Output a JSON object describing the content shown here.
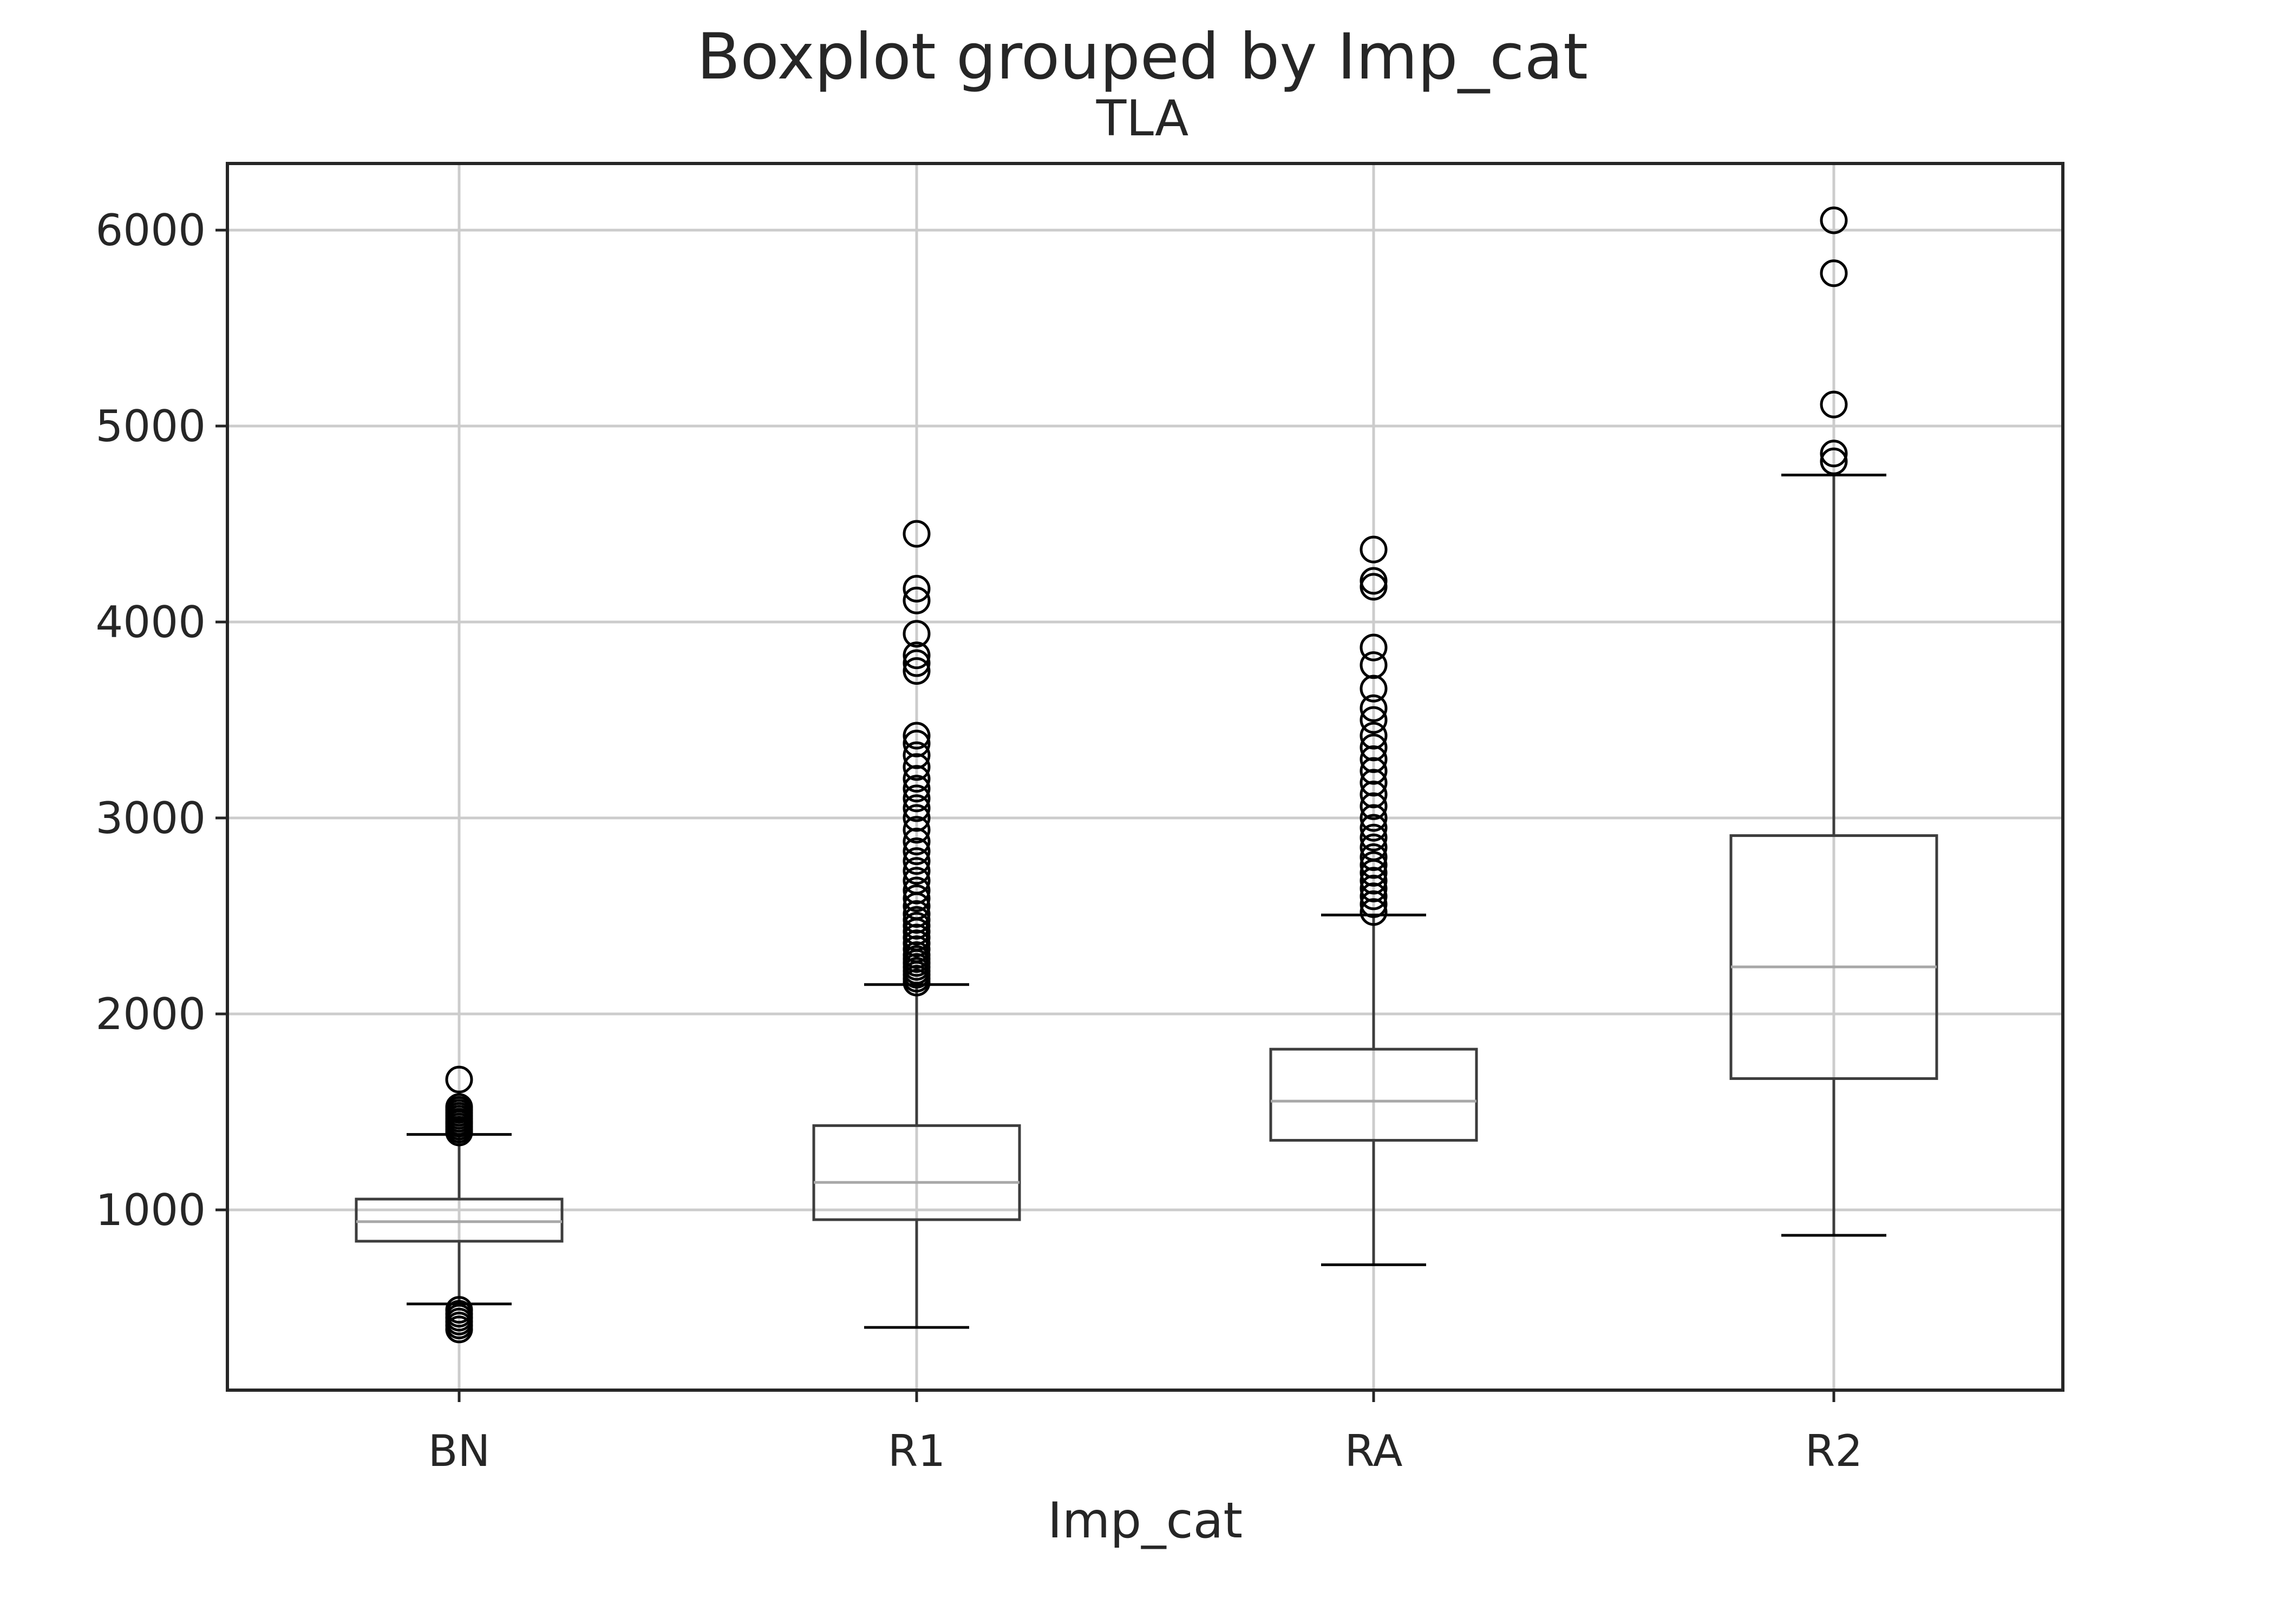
{
  "figure": {
    "suptitle": "Boxplot grouped by Imp_cat"
  },
  "chart_data": {
    "type": "box",
    "title": "TLA",
    "xlabel": "Imp_cat",
    "ylabel": "",
    "ylim": [
      80,
      6340
    ],
    "yticks": [
      1000,
      2000,
      3000,
      4000,
      5000,
      6000
    ],
    "grid": true,
    "categories": [
      "BN",
      "R1",
      "RA",
      "R2"
    ],
    "boxes": [
      {
        "category": "BN",
        "whisker_low": 520,
        "q1": 840,
        "median": 940,
        "q3": 1055,
        "whisker_high": 1385,
        "outliers": [
          390,
          410,
          430,
          450,
          470,
          490,
          1395,
          1410,
          1425,
          1440,
          1450,
          1465,
          1480,
          1495,
          1510,
          1525,
          1665
        ]
      },
      {
        "category": "R1",
        "whisker_low": 400,
        "q1": 950,
        "median": 1140,
        "q3": 1430,
        "whisker_high": 2150,
        "outliers": [
          2160,
          2180,
          2200,
          2220,
          2240,
          2260,
          2280,
          2300,
          2330,
          2360,
          2390,
          2420,
          2450,
          2480,
          2510,
          2550,
          2590,
          2630,
          2680,
          2730,
          2780,
          2830,
          2880,
          2940,
          3000,
          3050,
          3100,
          3150,
          3200,
          3260,
          3320,
          3380,
          3420,
          3750,
          3790,
          3830,
          3940,
          4110,
          4170,
          4450
        ]
      },
      {
        "category": "RA",
        "whisker_low": 720,
        "q1": 1355,
        "median": 1555,
        "q3": 1820,
        "whisker_high": 2505,
        "outliers": [
          2520,
          2560,
          2600,
          2640,
          2680,
          2720,
          2760,
          2800,
          2850,
          2900,
          2950,
          3000,
          3060,
          3120,
          3180,
          3240,
          3300,
          3360,
          3420,
          3500,
          3560,
          3660,
          3780,
          3870,
          4180,
          4210,
          4370
        ]
      },
      {
        "category": "R2",
        "whisker_low": 870,
        "q1": 1670,
        "median": 2240,
        "q3": 2910,
        "whisker_high": 4750,
        "outliers": [
          4820,
          4860,
          5110,
          5780,
          6050
        ]
      }
    ]
  },
  "colors": {
    "box": "#3d3d3d",
    "median": "#a8a8a8",
    "grid": "#cccccc",
    "spine": "#262626",
    "outlier": "#000000",
    "text": "#262626"
  }
}
